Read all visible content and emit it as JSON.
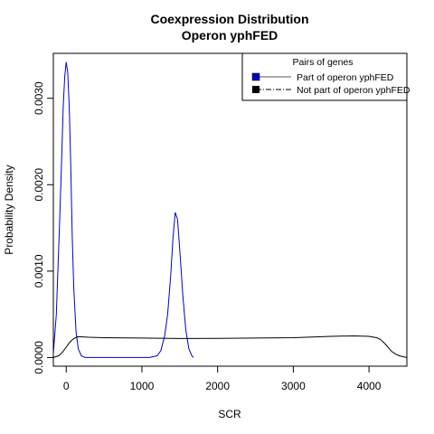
{
  "chart_data": {
    "type": "line",
    "title": "Coexpression Distribution",
    "subtitle": "Operon yphFED",
    "xlabel": "SCR",
    "ylabel": "Probability Density",
    "xlim": [
      -170,
      4500
    ],
    "ylim": [
      -0.0001,
      0.00352
    ],
    "x_ticks": [
      0,
      1000,
      2000,
      3000,
      4000
    ],
    "x_tick_labels": [
      "0",
      "1000",
      "2000",
      "3000",
      "4000"
    ],
    "y_ticks": [
      0.0,
      0.001,
      0.002,
      0.003
    ],
    "y_tick_labels": [
      "0.0000",
      "0.0010",
      "0.0020",
      "0.0030"
    ],
    "grid": false,
    "legend": {
      "title": "Pairs of genes",
      "placement": "top-right",
      "entries": [
        {
          "label": "Part of operon yphFED",
          "color": "#0000cc"
        },
        {
          "label": "Not part of operon yphFED",
          "color": "#000000"
        }
      ]
    },
    "series": [
      {
        "name": "Part of operon yphFED",
        "color": "#0000cc",
        "line_style": "solid",
        "x": [
          -170,
          -130,
          -90,
          -60,
          -40,
          -20,
          0,
          20,
          40,
          60,
          80,
          100,
          130,
          160,
          200,
          250,
          300,
          400,
          600,
          800,
          1000,
          1100,
          1200,
          1250,
          1300,
          1340,
          1380,
          1410,
          1440,
          1470,
          1500,
          1540,
          1580,
          1620,
          1660,
          1680
        ],
        "y": [
          5e-05,
          0.0005,
          0.0015,
          0.0023,
          0.0029,
          0.00325,
          0.00342,
          0.0033,
          0.0029,
          0.0022,
          0.0014,
          0.0008,
          0.0003,
          0.0001,
          2e-05,
          0.0,
          0.0,
          0.0,
          0.0,
          0.0,
          0.0,
          0.0,
          2e-05,
          8e-05,
          0.00025,
          0.0005,
          0.00095,
          0.00138,
          0.00168,
          0.0016,
          0.00125,
          0.00072,
          0.00032,
          0.0001,
          2e-05,
          0.0
        ]
      },
      {
        "name": "Not part of operon yphFED",
        "color": "#000000",
        "line_style": "solid",
        "x": [
          -170,
          -100,
          -50,
          0,
          50,
          100,
          150,
          200,
          300,
          500,
          1000,
          1500,
          2000,
          2500,
          3000,
          3500,
          3800,
          4000,
          4100,
          4150,
          4200,
          4250,
          4300,
          4350,
          4400,
          4450,
          4500
        ],
        "y": [
          0.0,
          2e-05,
          6e-05,
          0.00012,
          0.00018,
          0.00022,
          0.00024,
          0.00024,
          0.000235,
          0.00023,
          0.000225,
          0.00022,
          0.000222,
          0.000225,
          0.00023,
          0.000245,
          0.00025,
          0.000245,
          0.00023,
          0.00021,
          0.00017,
          0.00012,
          7e-05,
          4e-05,
          2e-05,
          1e-05,
          0.0
        ]
      }
    ]
  }
}
